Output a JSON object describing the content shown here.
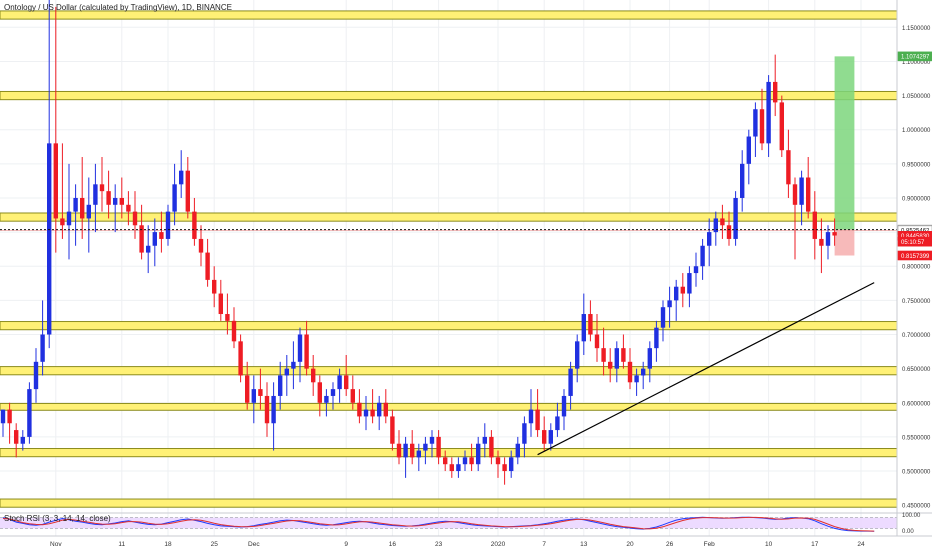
{
  "header": {
    "title": "Ontology / US Dollar (calculated by TradingView), 1D, BINANCE"
  },
  "rsi": {
    "label": "Stoch RSI (3, 3, 14, 14, close)",
    "ticks": [
      "100.00",
      "0.00"
    ]
  },
  "colors": {
    "up": "#2030e0",
    "down": "#ee1c24",
    "zone_fill": "#fff176",
    "zone_border": "#8c8c1e",
    "rsi_k": "#1e3cff",
    "rsi_d": "#e03030",
    "rsi_band": "#e9d2ff",
    "trendline": "#000000",
    "target_box": "#7cd67c",
    "stop_box": "#f6b3b3"
  },
  "chart_data": {
    "type": "candlestick",
    "title": "Ontology / US Dollar (calculated by TradingView), 1D, BINANCE",
    "xlabel": "",
    "ylabel": "",
    "ylim": [
      0.44,
      1.19
    ],
    "y_ticks": [
      "1.1500000",
      "1.1000000",
      "1.0500000",
      "1.0000000",
      "0.9500000",
      "0.9000000",
      "0.8500000",
      "0.8000000",
      "0.7500000",
      "0.7000000",
      "0.6500000",
      "0.6000000",
      "0.5500000",
      "0.5000000",
      "0.4500000"
    ],
    "x_ticks": [
      {
        "label": "Nov",
        "day": 8
      },
      {
        "label": "11",
        "day": 18
      },
      {
        "label": "18",
        "day": 25
      },
      {
        "label": "25",
        "day": 32
      },
      {
        "label": "Dec",
        "day": 38
      },
      {
        "label": "9",
        "day": 52
      },
      {
        "label": "16",
        "day": 59
      },
      {
        "label": "23",
        "day": 66
      },
      {
        "label": "2020",
        "day": 75
      },
      {
        "label": "7",
        "day": 82
      },
      {
        "label": "13",
        "day": 88
      },
      {
        "label": "20",
        "day": 95
      },
      {
        "label": "26",
        "day": 101
      },
      {
        "label": "Feb",
        "day": 107
      },
      {
        "label": "10",
        "day": 116
      },
      {
        "label": "17",
        "day": 123
      },
      {
        "label": "24",
        "day": 130
      }
    ],
    "price_labels": [
      {
        "value": 1.1074297,
        "text": "1.1074297",
        "bg": "#4caf50"
      },
      {
        "value": 0.8536536,
        "text": "0.8536536",
        "bg": "#ffffff"
      },
      {
        "value": 0.8525462,
        "text": "0.8525462",
        "bg": "#ffffff"
      },
      {
        "value": 0.844583,
        "text": "0.8445830",
        "bg": "#ee1c24"
      },
      {
        "value": 0.836,
        "text": "05:10:57",
        "bg": "#ee1c24"
      },
      {
        "value": 0.8157399,
        "text": "0.8157399",
        "bg": "#ee1c24"
      }
    ],
    "zones": [
      [
        1.162,
        1.174
      ],
      [
        1.044,
        1.056
      ],
      [
        0.866,
        0.878
      ],
      [
        0.707,
        0.719
      ],
      [
        0.641,
        0.653
      ],
      [
        0.589,
        0.599
      ],
      [
        0.521,
        0.533
      ],
      [
        0.447,
        0.459
      ]
    ],
    "candles": [
      [
        0.57,
        0.59,
        0.55,
        0.59
      ],
      [
        0.59,
        0.6,
        0.54,
        0.57
      ],
      [
        0.56,
        0.57,
        0.52,
        0.54
      ],
      [
        0.54,
        0.56,
        0.53,
        0.55
      ],
      [
        0.55,
        0.63,
        0.54,
        0.62
      ],
      [
        0.62,
        0.68,
        0.6,
        0.66
      ],
      [
        0.66,
        0.75,
        0.64,
        0.7
      ],
      [
        0.7,
        1.2,
        0.68,
        0.98
      ],
      [
        0.98,
        1.18,
        0.82,
        0.87
      ],
      [
        0.87,
        0.98,
        0.84,
        0.86
      ],
      [
        0.86,
        0.95,
        0.81,
        0.88
      ],
      [
        0.88,
        0.92,
        0.83,
        0.9
      ],
      [
        0.9,
        0.96,
        0.84,
        0.87
      ],
      [
        0.87,
        0.93,
        0.82,
        0.89
      ],
      [
        0.89,
        0.95,
        0.85,
        0.92
      ],
      [
        0.92,
        0.96,
        0.88,
        0.91
      ],
      [
        0.91,
        0.94,
        0.87,
        0.89
      ],
      [
        0.89,
        0.92,
        0.85,
        0.9
      ],
      [
        0.9,
        0.93,
        0.87,
        0.89
      ],
      [
        0.89,
        0.91,
        0.86,
        0.88
      ],
      [
        0.88,
        0.91,
        0.84,
        0.86
      ],
      [
        0.86,
        0.89,
        0.81,
        0.82
      ],
      [
        0.82,
        0.86,
        0.79,
        0.83
      ],
      [
        0.83,
        0.87,
        0.8,
        0.85
      ],
      [
        0.85,
        0.88,
        0.82,
        0.84
      ],
      [
        0.84,
        0.89,
        0.83,
        0.88
      ],
      [
        0.88,
        0.95,
        0.86,
        0.92
      ],
      [
        0.92,
        0.97,
        0.9,
        0.94
      ],
      [
        0.94,
        0.96,
        0.87,
        0.88
      ],
      [
        0.88,
        0.9,
        0.83,
        0.84
      ],
      [
        0.84,
        0.86,
        0.8,
        0.82
      ],
      [
        0.82,
        0.84,
        0.77,
        0.78
      ],
      [
        0.78,
        0.8,
        0.74,
        0.76
      ],
      [
        0.76,
        0.78,
        0.72,
        0.73
      ],
      [
        0.73,
        0.76,
        0.7,
        0.72
      ],
      [
        0.72,
        0.74,
        0.68,
        0.69
      ],
      [
        0.69,
        0.7,
        0.63,
        0.64
      ],
      [
        0.64,
        0.66,
        0.59,
        0.6
      ],
      [
        0.6,
        0.64,
        0.57,
        0.62
      ],
      [
        0.62,
        0.65,
        0.59,
        0.61
      ],
      [
        0.61,
        0.63,
        0.55,
        0.57
      ],
      [
        0.57,
        0.63,
        0.53,
        0.61
      ],
      [
        0.61,
        0.66,
        0.59,
        0.64
      ],
      [
        0.64,
        0.67,
        0.61,
        0.65
      ],
      [
        0.65,
        0.69,
        0.62,
        0.66
      ],
      [
        0.66,
        0.71,
        0.63,
        0.7
      ],
      [
        0.7,
        0.72,
        0.64,
        0.65
      ],
      [
        0.65,
        0.67,
        0.61,
        0.63
      ],
      [
        0.63,
        0.64,
        0.58,
        0.6
      ],
      [
        0.6,
        0.62,
        0.58,
        0.61
      ],
      [
        0.61,
        0.63,
        0.59,
        0.62
      ],
      [
        0.62,
        0.65,
        0.6,
        0.64
      ],
      [
        0.64,
        0.67,
        0.61,
        0.62
      ],
      [
        0.62,
        0.64,
        0.59,
        0.6
      ],
      [
        0.6,
        0.62,
        0.57,
        0.58
      ],
      [
        0.58,
        0.61,
        0.56,
        0.59
      ],
      [
        0.59,
        0.62,
        0.57,
        0.58
      ],
      [
        0.58,
        0.61,
        0.56,
        0.6
      ],
      [
        0.6,
        0.62,
        0.57,
        0.58
      ],
      [
        0.58,
        0.59,
        0.53,
        0.54
      ],
      [
        0.54,
        0.56,
        0.51,
        0.52
      ],
      [
        0.52,
        0.55,
        0.49,
        0.54
      ],
      [
        0.54,
        0.56,
        0.51,
        0.52
      ],
      [
        0.52,
        0.54,
        0.5,
        0.53
      ],
      [
        0.53,
        0.55,
        0.51,
        0.54
      ],
      [
        0.54,
        0.56,
        0.52,
        0.55
      ],
      [
        0.55,
        0.56,
        0.51,
        0.52
      ],
      [
        0.52,
        0.53,
        0.5,
        0.51
      ],
      [
        0.51,
        0.52,
        0.49,
        0.5
      ],
      [
        0.5,
        0.52,
        0.49,
        0.51
      ],
      [
        0.51,
        0.53,
        0.5,
        0.52
      ],
      [
        0.52,
        0.54,
        0.5,
        0.51
      ],
      [
        0.51,
        0.55,
        0.5,
        0.54
      ],
      [
        0.54,
        0.57,
        0.52,
        0.55
      ],
      [
        0.55,
        0.56,
        0.51,
        0.52
      ],
      [
        0.52,
        0.53,
        0.49,
        0.51
      ],
      [
        0.51,
        0.52,
        0.48,
        0.5
      ],
      [
        0.5,
        0.53,
        0.49,
        0.52
      ],
      [
        0.52,
        0.55,
        0.51,
        0.54
      ],
      [
        0.54,
        0.58,
        0.52,
        0.57
      ],
      [
        0.57,
        0.62,
        0.55,
        0.59
      ],
      [
        0.59,
        0.62,
        0.55,
        0.56
      ],
      [
        0.56,
        0.58,
        0.53,
        0.54
      ],
      [
        0.54,
        0.57,
        0.53,
        0.56
      ],
      [
        0.56,
        0.6,
        0.55,
        0.58
      ],
      [
        0.58,
        0.62,
        0.56,
        0.61
      ],
      [
        0.61,
        0.66,
        0.59,
        0.65
      ],
      [
        0.65,
        0.7,
        0.63,
        0.69
      ],
      [
        0.69,
        0.76,
        0.67,
        0.73
      ],
      [
        0.73,
        0.75,
        0.69,
        0.7
      ],
      [
        0.7,
        0.73,
        0.66,
        0.68
      ],
      [
        0.68,
        0.71,
        0.64,
        0.66
      ],
      [
        0.66,
        0.68,
        0.63,
        0.65
      ],
      [
        0.65,
        0.69,
        0.63,
        0.68
      ],
      [
        0.68,
        0.7,
        0.65,
        0.66
      ],
      [
        0.66,
        0.68,
        0.62,
        0.63
      ],
      [
        0.63,
        0.65,
        0.61,
        0.64
      ],
      [
        0.64,
        0.66,
        0.62,
        0.65
      ],
      [
        0.65,
        0.69,
        0.63,
        0.68
      ],
      [
        0.68,
        0.72,
        0.66,
        0.71
      ],
      [
        0.71,
        0.75,
        0.69,
        0.74
      ],
      [
        0.74,
        0.77,
        0.71,
        0.75
      ],
      [
        0.75,
        0.78,
        0.72,
        0.77
      ],
      [
        0.77,
        0.79,
        0.74,
        0.76
      ],
      [
        0.76,
        0.8,
        0.74,
        0.79
      ],
      [
        0.79,
        0.82,
        0.77,
        0.8
      ],
      [
        0.8,
        0.84,
        0.78,
        0.83
      ],
      [
        0.83,
        0.87,
        0.8,
        0.85
      ],
      [
        0.85,
        0.88,
        0.83,
        0.87
      ],
      [
        0.87,
        0.89,
        0.84,
        0.86
      ],
      [
        0.86,
        0.88,
        0.83,
        0.84
      ],
      [
        0.84,
        0.91,
        0.83,
        0.9
      ],
      [
        0.9,
        0.97,
        0.88,
        0.95
      ],
      [
        0.95,
        1.0,
        0.92,
        0.99
      ],
      [
        0.99,
        1.04,
        0.96,
        1.03
      ],
      [
        1.03,
        1.06,
        0.97,
        0.98
      ],
      [
        0.98,
        1.08,
        0.96,
        1.07
      ],
      [
        1.07,
        1.11,
        1.02,
        1.04
      ],
      [
        1.04,
        1.05,
        0.96,
        0.97
      ],
      [
        0.97,
        1.0,
        0.9,
        0.92
      ],
      [
        0.92,
        0.93,
        0.81,
        0.89
      ],
      [
        0.89,
        0.94,
        0.86,
        0.93
      ],
      [
        0.93,
        0.96,
        0.87,
        0.88
      ],
      [
        0.88,
        0.91,
        0.81,
        0.84
      ],
      [
        0.84,
        0.87,
        0.79,
        0.83
      ],
      [
        0.83,
        0.86,
        0.81,
        0.85
      ],
      [
        0.85,
        0.87,
        0.83,
        0.845
      ]
    ],
    "trendline": [
      {
        "day": 81,
        "price": 0.524
      },
      {
        "day": 132,
        "price": 0.776
      }
    ],
    "dotted_line": 0.8536536,
    "position": {
      "day_start": 126,
      "day_end": 129,
      "entry": 0.8536536,
      "target": 1.1074297,
      "stop": 0.8157399
    },
    "rsi_k": [
      80,
      70,
      55,
      48,
      40,
      38,
      42,
      55,
      65,
      75,
      68,
      60,
      55,
      48,
      42,
      40,
      45,
      50,
      58,
      62,
      55,
      48,
      42,
      40,
      44,
      52,
      60,
      68,
      72,
      65,
      58,
      48,
      40,
      34,
      32,
      30,
      28,
      30,
      35,
      42,
      48,
      55,
      62,
      66,
      64,
      58,
      52,
      46,
      40,
      38,
      40,
      46,
      52,
      58,
      60,
      56,
      50,
      44,
      40,
      36,
      34,
      32,
      34,
      38,
      44,
      50,
      56,
      60,
      58,
      52,
      46,
      40,
      36,
      34,
      32,
      30,
      28,
      30,
      32,
      34,
      36,
      40,
      46,
      52,
      60,
      66,
      70,
      72,
      68,
      60,
      52,
      44,
      36,
      30,
      26,
      22,
      18,
      16,
      20,
      28,
      40,
      54,
      66,
      74,
      78,
      80,
      82,
      80,
      78,
      76,
      78,
      80,
      82,
      82,
      80,
      78,
      74,
      70,
      72,
      78,
      80,
      78,
      74,
      62,
      46,
      32,
      20,
      12,
      8,
      6,
      5,
      5,
      4
    ],
    "rsi_d": [
      75,
      72,
      62,
      52,
      46,
      42,
      40,
      46,
      55,
      66,
      70,
      66,
      60,
      54,
      48,
      44,
      43,
      46,
      52,
      58,
      58,
      55,
      49,
      44,
      42,
      46,
      52,
      60,
      66,
      68,
      65,
      58,
      49,
      41,
      36,
      32,
      30,
      29,
      31,
      36,
      42,
      48,
      55,
      61,
      64,
      62,
      58,
      52,
      46,
      42,
      39,
      40,
      45,
      51,
      56,
      58,
      55,
      50,
      45,
      40,
      37,
      34,
      33,
      35,
      39,
      45,
      50,
      55,
      58,
      57,
      52,
      46,
      41,
      37,
      34,
      32,
      30,
      29,
      30,
      32,
      34,
      37,
      41,
      46,
      53,
      60,
      66,
      70,
      70,
      66,
      59,
      51,
      43,
      36,
      30,
      26,
      22,
      18,
      17,
      21,
      29,
      41,
      53,
      64,
      72,
      77,
      80,
      80,
      79,
      78,
      77,
      78,
      80,
      81,
      81,
      80,
      77,
      73,
      71,
      73,
      77,
      78,
      77,
      70,
      58,
      44,
      30,
      20,
      13,
      9,
      7,
      6,
      5
    ]
  }
}
